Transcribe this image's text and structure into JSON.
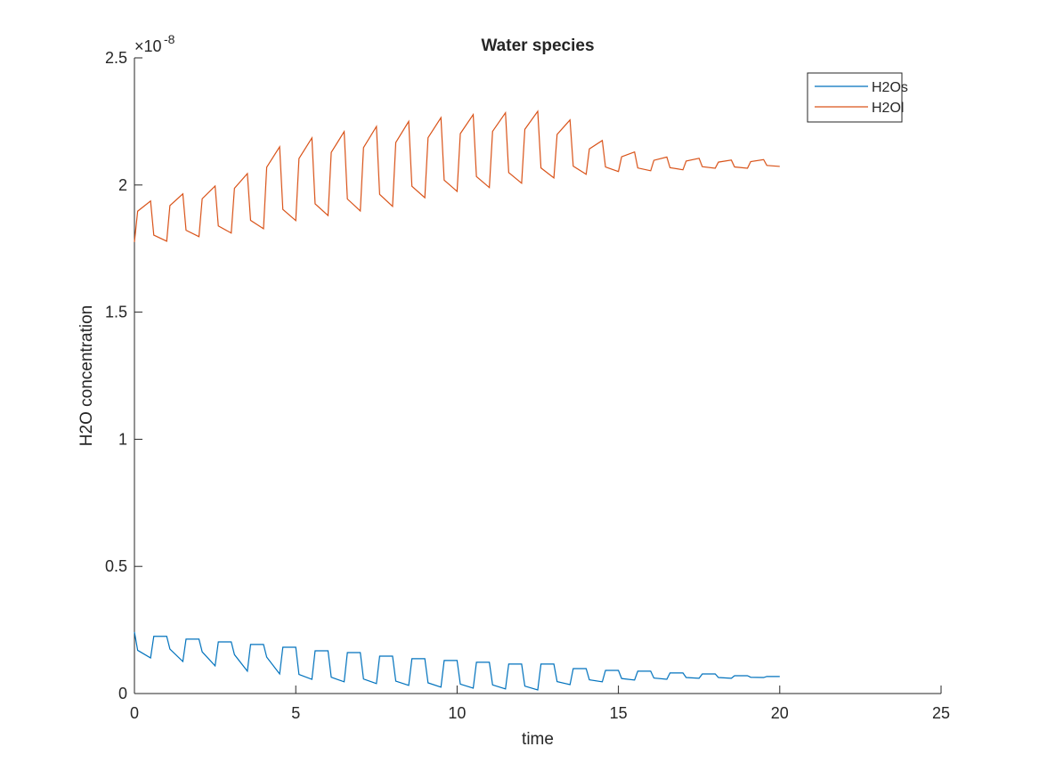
{
  "chart_data": {
    "type": "line",
    "title": "Water species",
    "xlabel": "time",
    "ylabel": "H2O concentration",
    "y_multiplier": "×10",
    "y_multiplier_exponent": "-8",
    "xlim": [
      0,
      25
    ],
    "xticks": [
      0,
      5,
      10,
      15,
      20,
      25
    ],
    "ylim": [
      0,
      2.5
    ],
    "yticks": [
      0,
      0.5,
      1,
      1.5,
      2,
      2.5
    ],
    "legend_position": "top-right",
    "x": [
      0,
      0.1,
      0.5,
      0.6,
      1,
      1.1,
      1.5,
      1.6,
      2,
      2.1,
      2.5,
      2.6,
      3,
      3.1,
      3.5,
      3.6,
      4,
      4.1,
      4.5,
      4.6,
      5,
      5.1,
      5.5,
      5.6,
      6,
      6.1,
      6.5,
      6.6,
      7,
      7.1,
      7.5,
      7.6,
      8,
      8.1,
      8.5,
      8.6,
      9,
      9.1,
      9.5,
      9.6,
      10,
      10.1,
      10.5,
      10.6,
      11,
      11.1,
      11.5,
      11.6,
      12,
      12.1,
      12.5,
      12.6,
      13,
      13.1,
      13.5,
      13.6,
      14,
      14.1,
      14.5,
      14.6,
      15,
      15.1,
      15.5,
      15.6,
      16,
      16.1,
      16.5,
      16.6,
      17,
      17.1,
      17.5,
      17.6,
      18,
      18.1,
      18.5,
      18.6,
      19,
      19.1,
      19.5,
      19.6,
      20
    ],
    "series": [
      {
        "name": "H2Os",
        "color": "#0072BD",
        "values": [
          0.242,
          0.17,
          0.14,
          0.225,
          0.225,
          0.175,
          0.126,
          0.214,
          0.214,
          0.164,
          0.109,
          0.203,
          0.203,
          0.153,
          0.088,
          0.193,
          0.193,
          0.143,
          0.077,
          0.182,
          0.182,
          0.075,
          0.056,
          0.168,
          0.168,
          0.064,
          0.046,
          0.161,
          0.161,
          0.057,
          0.039,
          0.147,
          0.147,
          0.049,
          0.032,
          0.137,
          0.137,
          0.042,
          0.025,
          0.13,
          0.13,
          0.037,
          0.021,
          0.123,
          0.123,
          0.034,
          0.018,
          0.116,
          0.116,
          0.029,
          0.014,
          0.116,
          0.116,
          0.047,
          0.035,
          0.098,
          0.098,
          0.054,
          0.046,
          0.091,
          0.091,
          0.059,
          0.053,
          0.088,
          0.088,
          0.061,
          0.056,
          0.081,
          0.081,
          0.063,
          0.06,
          0.077,
          0.077,
          0.063,
          0.06,
          0.07,
          0.07,
          0.064,
          0.063,
          0.067,
          0.067
        ]
      },
      {
        "name": "H2Ol",
        "color": "#D95319",
        "values": [
          1.776,
          1.897,
          1.937,
          1.803,
          1.779,
          1.919,
          1.965,
          1.822,
          1.797,
          1.946,
          1.996,
          1.839,
          1.811,
          1.987,
          2.045,
          1.861,
          1.828,
          2.07,
          2.15,
          1.904,
          1.86,
          2.104,
          2.185,
          1.926,
          1.88,
          2.128,
          2.21,
          1.945,
          1.898,
          2.147,
          2.23,
          1.963,
          1.916,
          2.167,
          2.25,
          1.995,
          1.95,
          2.186,
          2.265,
          2.019,
          1.975,
          2.202,
          2.277,
          2.033,
          1.99,
          2.211,
          2.284,
          2.049,
          2.007,
          2.219,
          2.29,
          2.067,
          2.028,
          2.199,
          2.256,
          2.074,
          2.042,
          2.142,
          2.175,
          2.071,
          2.053,
          2.111,
          2.13,
          2.067,
          2.056,
          2.097,
          2.11,
          2.068,
          2.06,
          2.094,
          2.105,
          2.072,
          2.066,
          2.09,
          2.098,
          2.071,
          2.066,
          2.092,
          2.1,
          2.077,
          2.073
        ]
      }
    ]
  }
}
